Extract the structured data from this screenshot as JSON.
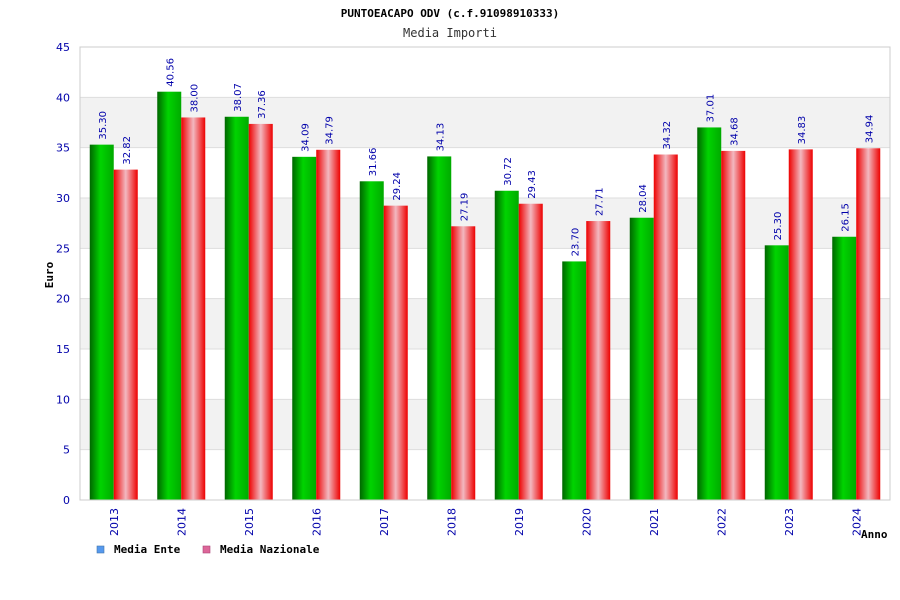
{
  "chart_data": {
    "type": "bar",
    "title": "PUNTOEACAPO ODV (c.f.91098910333)",
    "subtitle": "Media Importi",
    "xlabel": "Anno",
    "ylabel": "Euro",
    "ylim": [
      0,
      45
    ],
    "yticks": [
      0,
      5,
      10,
      15,
      20,
      25,
      30,
      35,
      40,
      45
    ],
    "categories": [
      "2013",
      "2014",
      "2015",
      "2016",
      "2017",
      "2018",
      "2019",
      "2020",
      "2021",
      "2022",
      "2023",
      "2024"
    ],
    "series": [
      {
        "name": "Media Ente",
        "values": [
          35.3,
          40.56,
          38.07,
          34.09,
          31.66,
          34.13,
          30.72,
          23.7,
          28.04,
          37.01,
          25.3,
          26.15
        ],
        "labels": [
          "35.30",
          "40.56",
          "38.07",
          "34.09",
          "31.66",
          "34.13",
          "30.72",
          "23.70",
          "28.04",
          "37.01",
          "25.30",
          "26.15"
        ],
        "color": "#00b000",
        "legend_color": "#5599ee"
      },
      {
        "name": "Media Nazionale",
        "values": [
          32.82,
          38.0,
          37.36,
          34.79,
          29.24,
          27.19,
          29.43,
          27.71,
          34.32,
          34.68,
          34.83,
          34.94
        ],
        "labels": [
          "32.82",
          "38.00",
          "37.36",
          "34.79",
          "29.24",
          "27.19",
          "29.43",
          "27.71",
          "34.32",
          "34.68",
          "34.83",
          "34.94"
        ],
        "color": "#ee1122",
        "legend_color": "#dd6699"
      }
    ],
    "grid": true,
    "legend_position": "bottom-left"
  }
}
